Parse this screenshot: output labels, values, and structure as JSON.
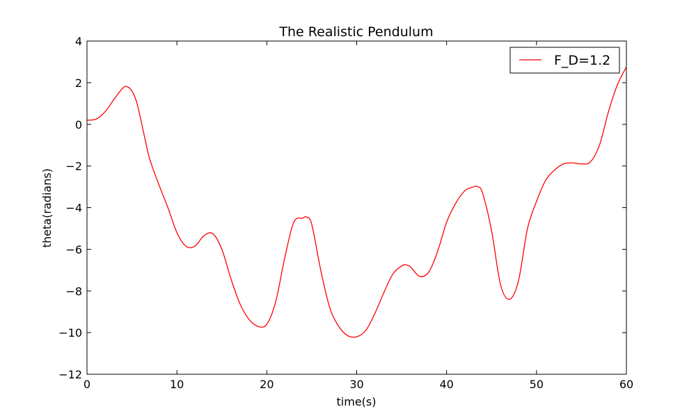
{
  "chart_data": {
    "type": "line",
    "title": "The Realistic Pendulum",
    "xlabel": "time(s)",
    "ylabel": "theta(radians)",
    "xlim": [
      0,
      60
    ],
    "ylim": [
      -12,
      4
    ],
    "xticks": [
      0,
      10,
      20,
      30,
      40,
      50,
      60
    ],
    "yticks": [
      4,
      2,
      0,
      -2,
      -4,
      -6,
      -8,
      -10,
      -12
    ],
    "ytick_labels": [
      "4",
      "2",
      "0",
      "−2",
      "−4",
      "−6",
      "−8",
      "−10",
      "−12"
    ],
    "grid": false,
    "legend_position": "top-right",
    "series": [
      {
        "name": "F_D=1.2",
        "color": "#ff0000",
        "x": [
          0,
          1,
          2,
          3,
          4,
          4.5,
          5,
          5.5,
          6,
          6.5,
          7,
          8,
          9,
          10,
          11,
          12,
          13,
          14,
          15,
          16,
          17,
          18,
          19,
          20,
          21,
          22,
          23,
          24,
          24.4,
          25,
          26,
          27,
          28,
          29,
          30,
          31,
          32,
          33,
          34,
          35,
          35.5,
          36,
          37,
          38,
          39,
          40,
          41,
          42,
          43,
          43.5,
          44,
          45,
          46,
          47,
          48,
          49,
          50,
          51,
          52,
          53,
          54,
          55,
          56,
          57,
          58,
          59,
          60
        ],
        "y": [
          0.2,
          0.25,
          0.6,
          1.2,
          1.75,
          1.8,
          1.6,
          1.1,
          0.2,
          -0.8,
          -1.7,
          -2.9,
          -4.0,
          -5.2,
          -5.85,
          -5.85,
          -5.35,
          -5.25,
          -6.0,
          -7.4,
          -8.6,
          -9.35,
          -9.7,
          -9.6,
          -8.5,
          -6.4,
          -4.7,
          -4.5,
          -4.45,
          -4.8,
          -7.0,
          -8.8,
          -9.7,
          -10.15,
          -10.2,
          -9.9,
          -9.1,
          -8.1,
          -7.2,
          -6.8,
          -6.75,
          -6.85,
          -7.3,
          -7.1,
          -6.1,
          -4.7,
          -3.8,
          -3.2,
          -3.0,
          -3.0,
          -3.3,
          -5.1,
          -7.7,
          -8.4,
          -7.5,
          -5.0,
          -3.7,
          -2.7,
          -2.2,
          -1.9,
          -1.85,
          -1.9,
          -1.8,
          -1.0,
          0.6,
          1.9,
          2.75
        ]
      }
    ]
  }
}
